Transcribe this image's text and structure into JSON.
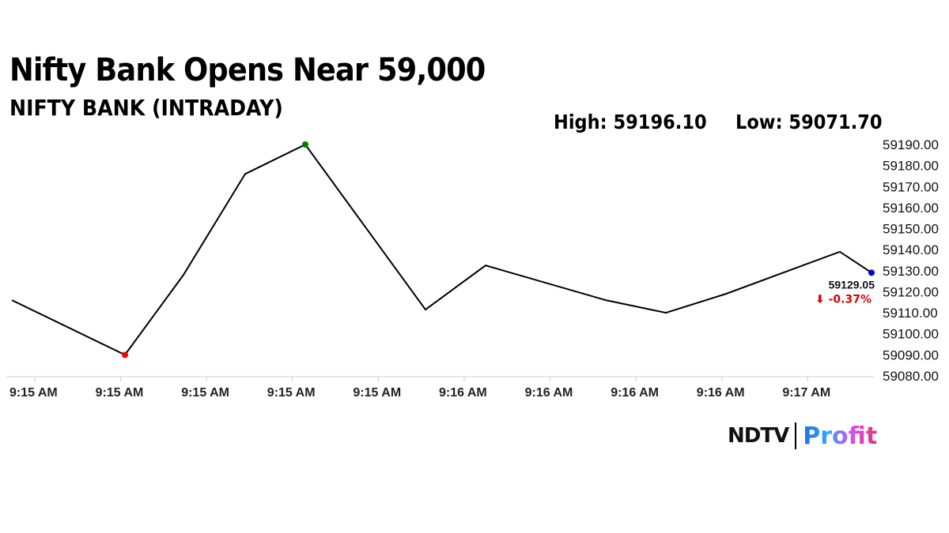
{
  "header": {
    "title": "Nifty Bank Opens Near 59,000",
    "subtitle": "NIFTY BANK (INTRADAY)",
    "high": "High: 59196.10",
    "low": "Low: 59071.70"
  },
  "chart_data": {
    "type": "line",
    "x_tick_labels": [
      "9:15 AM",
      "9:15 AM",
      "9:15 AM",
      "9:15 AM",
      "9:15 AM",
      "9:16 AM",
      "9:16 AM",
      "9:16 AM",
      "9:16 AM",
      "9:17 AM"
    ],
    "y_tick_labels": [
      "59080.00",
      "59090.00",
      "59100.00",
      "59110.00",
      "59120.00",
      "59130.00",
      "59140.00",
      "59150.00",
      "59160.00",
      "59170.00",
      "59180.00",
      "59190.00"
    ],
    "ylim": [
      59080,
      59190
    ],
    "values": [
      59116,
      59090,
      59128,
      59176,
      59190,
      59111.5,
      59132.5,
      59116,
      59110,
      59119,
      59139,
      59129.05
    ],
    "markers": {
      "min_color": "#ff0000",
      "max_color": "#008000",
      "last_color": "#0000cc"
    },
    "last_value_label": "59129.05",
    "change_label": "⬇ -0.37%",
    "change_color": "#e00000",
    "line_color": "#000000",
    "grid": false
  },
  "logo": {
    "ndtv": "NDTV",
    "profit": "Profit"
  }
}
